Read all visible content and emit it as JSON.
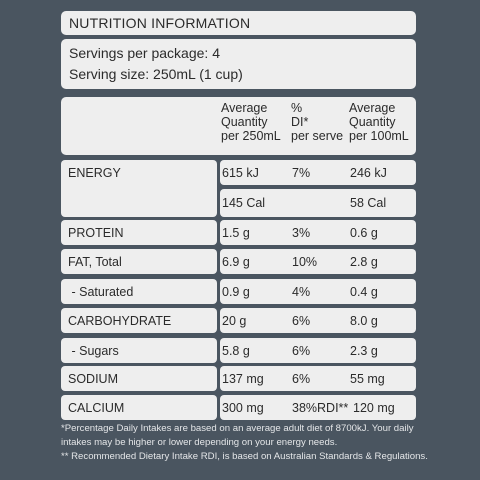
{
  "title": "NUTRITION INFORMATION",
  "servings": {
    "per_package": "Servings per package: 4",
    "serving_size": "Serving size: 250mL (1 cup)"
  },
  "header": {
    "col1": [
      "Average",
      "Quantity",
      "per 250mL"
    ],
    "col2": [
      "%",
      "DI*",
      "per serve"
    ],
    "col3": [
      "Average",
      "Quantity",
      "per 100mL"
    ]
  },
  "rows": [
    {
      "label": "ENERGY",
      "qty": "615 kJ",
      "di": "7%",
      "per100": "246 kJ"
    },
    {
      "label": "",
      "qty": "145 Cal",
      "di": "",
      "per100": "58 Cal"
    },
    {
      "label": "PROTEIN",
      "qty": "1.5 g",
      "di": "3%",
      "per100": "0.6 g"
    },
    {
      "label": "FAT, Total",
      "qty": "6.9 g",
      "di": "10%",
      "per100": "2.8 g"
    },
    {
      "label": " - Saturated",
      "qty": "0.9 g",
      "di": "4%",
      "per100": "0.4 g"
    },
    {
      "label": "CARBOHYDRATE",
      "qty": "20 g",
      "di": "6%",
      "per100": "8.0 g"
    },
    {
      "label": " - Sugars",
      "qty": "5.8 g",
      "di": "6%",
      "per100": "2.3 g"
    },
    {
      "label": "SODIUM",
      "qty": "137 mg",
      "di": "6%",
      "per100": "55 mg"
    },
    {
      "label": "CALCIUM",
      "qty": "300 mg",
      "di": "38%RDI**",
      "per100": "120 mg"
    }
  ],
  "footer": {
    "line1": "*Percentage Daily Intakes are based on an average adult diet of 8700kJ. Your daily",
    "line2": "intakes may be higher or lower depending on your energy needs.",
    "line3": "** Recommended Dietary Intake RDI, is based on Australian Standards & Regulations."
  }
}
